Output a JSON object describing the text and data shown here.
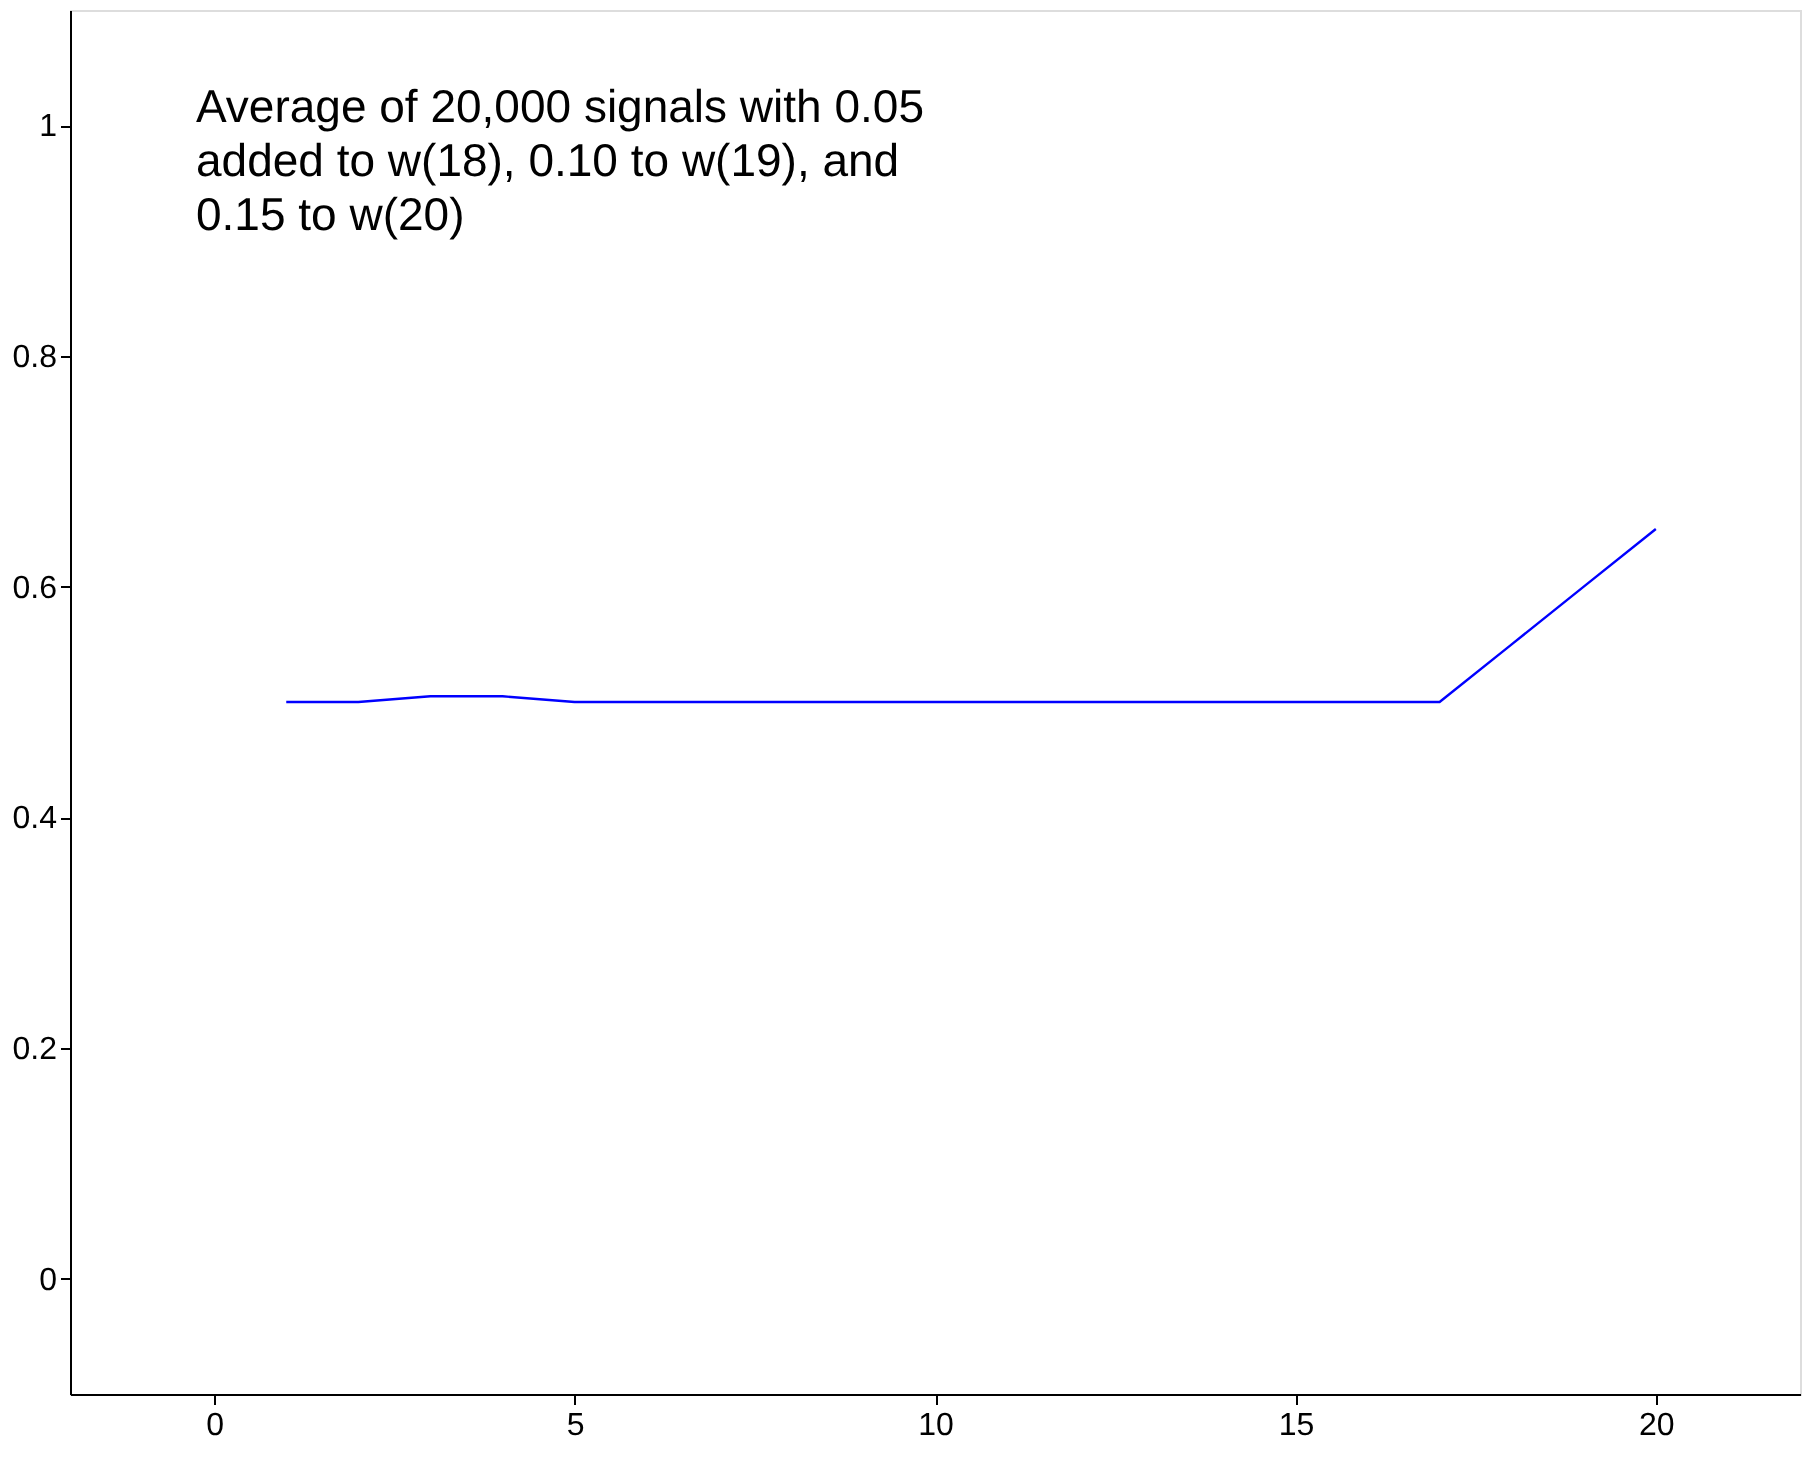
{
  "chart_data": {
    "type": "line",
    "x": [
      1,
      2,
      3,
      4,
      5,
      6,
      7,
      8,
      9,
      10,
      11,
      12,
      13,
      14,
      15,
      16,
      17,
      18,
      19,
      20
    ],
    "series": [
      {
        "color": "#0000ff",
        "values": [
          0.5,
          0.5,
          0.505,
          0.505,
          0.5,
          0.5,
          0.5,
          0.5,
          0.5,
          0.5,
          0.5,
          0.5,
          0.5,
          0.5,
          0.5,
          0.5,
          0.5,
          0.55,
          0.6,
          0.65
        ]
      }
    ],
    "annotations": [
      "Average of 20,000 signals with 0.05\nadded to w(18), 0.10 to w(19), and\n0.15 to w(20)"
    ],
    "xlim": [
      -2,
      22
    ],
    "ylim": [
      -0.1,
      1.1
    ],
    "xticks": [
      0,
      5,
      10,
      15,
      20
    ],
    "yticks": [
      0,
      0.2,
      0.4,
      0.6,
      0.8,
      1
    ],
    "grid": false,
    "marker": "none",
    "line_style": "solid"
  }
}
